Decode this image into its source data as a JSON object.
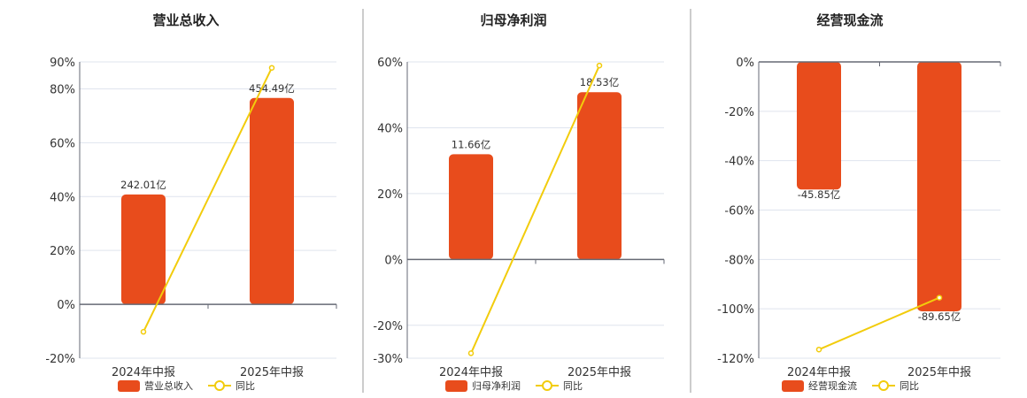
{
  "colors": {
    "bar": "#e84c1c",
    "line": "#f2cc0c",
    "grid": "#dfe4ee",
    "axis": "#666a75"
  },
  "chart_data": [
    {
      "type": "bar+line",
      "title": "营业总收入",
      "categories": [
        "2024年中报",
        "2025年中报"
      ],
      "bar_series": {
        "name": "营业总收入",
        "values": [
          242.01,
          454.49
        ],
        "labels": [
          "242.01亿",
          "454.49亿"
        ]
      },
      "line_series": {
        "name": "同比",
        "values": [
          -10.2,
          87.8
        ]
      },
      "y_ticks": [
        "-20%",
        "0%",
        "20%",
        "40%",
        "60%",
        "80%",
        "90%"
      ],
      "ylim": [
        -20,
        90
      ]
    },
    {
      "type": "bar+line",
      "title": "归母净利润",
      "categories": [
        "2024年中报",
        "2025年中报"
      ],
      "bar_series": {
        "name": "归母净利润",
        "values": [
          11.66,
          18.53
        ],
        "labels": [
          "11.66亿",
          "18.53亿"
        ]
      },
      "line_series": {
        "name": "同比",
        "values": [
          -28.5,
          58.9
        ]
      },
      "y_ticks": [
        "-30%",
        "-20%",
        "0%",
        "20%",
        "40%",
        "60%"
      ],
      "ylim": [
        -30,
        60
      ]
    },
    {
      "type": "bar+line",
      "title": "经营现金流",
      "categories": [
        "2024年中报",
        "2025年中报"
      ],
      "bar_series": {
        "name": "经营现金流",
        "values": [
          -45.85,
          -89.65
        ],
        "labels": [
          "-45.85亿",
          "-89.65亿"
        ]
      },
      "line_series": {
        "name": "同比",
        "values": [
          -116.5,
          -95.5
        ]
      },
      "y_ticks": [
        "-120%",
        "-100%",
        "-80%",
        "-60%",
        "-40%",
        "-20%",
        "0%"
      ],
      "ylim": [
        -120,
        0
      ]
    }
  ]
}
